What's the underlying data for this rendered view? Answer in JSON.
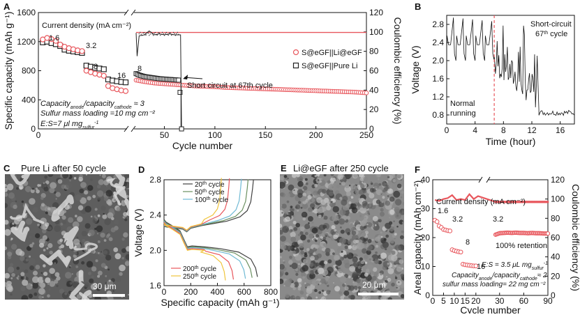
{
  "panel_labels": {
    "a": "A",
    "b": "B",
    "c": "C",
    "d": "D",
    "e": "E",
    "f": "F"
  },
  "panel_c": {
    "title": "Pure Li after 50 cycle",
    "scale": "30 μm"
  },
  "panel_e": {
    "title": "Li@eGF after 250 cycle",
    "scale": "20 μm"
  },
  "colors": {
    "red": "#e8565c",
    "black": "#222222",
    "sem_bg": "#6f6f6f"
  },
  "chart_data": [
    {
      "id": "A",
      "type": "scatter",
      "xlabel": "Cycle number",
      "ylabel": "Specific capacity (mAh g⁻¹)",
      "y2label": "Coulombic efficiency (%)",
      "xlim": [
        0,
        250
      ],
      "ylim": [
        0,
        1600
      ],
      "y2lim": [
        0,
        120
      ],
      "xticks": [
        0,
        50,
        100,
        150,
        200,
        250
      ],
      "yticks": [
        0,
        400,
        800,
        1200,
        1600
      ],
      "y2ticks": [
        0,
        20,
        40,
        60,
        80,
        100,
        120
      ],
      "axis_break": "between cycle 20 and 22",
      "legend": [
        "S@eGF||Li@eGF",
        "S@eGF||Pure Li"
      ],
      "annotations": {
        "current_density": "Current density (mA cm⁻²)",
        "rates": [
          "1.6",
          "3.2",
          "8",
          "16",
          "8"
        ],
        "short_circuit": "Short circuit at 67th cycle",
        "ratio_pre": "Capacity",
        "ratio_sub1": "anode",
        "ratio_mid": "/capacity",
        "ratio_sub2": "cathode",
        "ratio_post": "≈ 3",
        "loading": "Sulfur mass loading =10 mg cm⁻²",
        "es_pre": "E:S=7 μl mg",
        "es_sub": "sulfur",
        "es_sup": "-1"
      },
      "series": [
        {
          "name": "S@eGF||Li@eGF (capacity)",
          "x": [
            1,
            2,
            3,
            4,
            5,
            6,
            7,
            8,
            9,
            10,
            11,
            12,
            13,
            14,
            15,
            16,
            17,
            18,
            19,
            20
          ],
          "values": [
            1230,
            1250,
            1235,
            1210,
            1160,
            1130,
            1110,
            1095,
            1080,
            1070,
            800,
            780,
            760,
            745,
            730,
            590,
            560,
            545,
            530,
            520
          ]
        },
        {
          "name": "S@eGF||Pure Li (capacity)",
          "x": [
            1,
            2,
            3,
            4,
            5,
            6,
            7,
            8,
            9,
            10,
            11,
            12,
            13,
            14,
            15,
            16,
            17,
            18,
            19,
            20
          ],
          "values": [
            1190,
            1200,
            1180,
            1165,
            1140,
            1090,
            1075,
            1065,
            1055,
            1045,
            870,
            855,
            840,
            830,
            820,
            680,
            665,
            655,
            645,
            640
          ]
        },
        {
          "name": "S@eGF||Li@eGF (long)",
          "x": [
            22,
            30,
            40,
            50,
            60,
            70,
            80,
            90,
            100,
            110,
            120,
            130,
            140,
            150,
            160,
            170,
            180,
            190,
            200,
            210,
            220,
            230,
            240,
            250
          ],
          "values": [
            670,
            650,
            630,
            620,
            610,
            600,
            590,
            585,
            580,
            570,
            565,
            560,
            555,
            550,
            545,
            540,
            535,
            530,
            525,
            520,
            515,
            510,
            505,
            495
          ]
        },
        {
          "name": "S@eGF||Pure Li (long)",
          "x": [
            22,
            25,
            30,
            35,
            40,
            45,
            50,
            55,
            60,
            65,
            67
          ],
          "values": [
            760,
            740,
            720,
            710,
            700,
            690,
            685,
            680,
            675,
            670,
            0
          ]
        },
        {
          "name": "CE Li@eGF (%)",
          "x": [
            22,
            250
          ],
          "values": [
            99.5,
            99.5
          ]
        },
        {
          "name": "CE Pure Li (%)",
          "x": [
            22,
            23,
            25,
            30,
            35,
            40,
            45,
            50,
            55,
            60,
            65,
            66,
            67
          ],
          "values": [
            99,
            75,
            96,
            97,
            101,
            97,
            98,
            97,
            98,
            97,
            97,
            97,
            0
          ]
        }
      ]
    },
    {
      "id": "B",
      "type": "line",
      "xlabel": "Time (hour)",
      "ylabel": "Voltage (V)",
      "xlim": [
        0,
        18
      ],
      "ylim": [
        0.6,
        3.0
      ],
      "xticks": [
        0,
        4,
        8,
        12,
        16
      ],
      "yticks": [
        0.8,
        1.2,
        1.6,
        2.0,
        2.4,
        2.8
      ],
      "annotations": {
        "short_circuit": "Short-circuit",
        "cycle_pre": "67",
        "cycle_sup": "th",
        "cycle_post": " cycle",
        "normal_1": "Normal",
        "normal_2": "running"
      },
      "dashed_line_x": 6.7
    },
    {
      "id": "D",
      "type": "line",
      "xlabel": "Specific capacity (mAh g⁻¹)",
      "ylabel": "Voltage (V)",
      "xlim": [
        0,
        800
      ],
      "ylim": [
        1.6,
        2.8
      ],
      "xticks": [
        0,
        200,
        400,
        600,
        800
      ],
      "yticks": [
        1.6,
        2.0,
        2.4,
        2.8
      ],
      "series": [
        {
          "name": "20th cycle",
          "n": "20",
          "sup": "th",
          "post": " cycle",
          "color": "#404040",
          "capacity": 700
        },
        {
          "name": "50th cycle",
          "n": "50",
          "sup": "th",
          "post": " cycle",
          "color": "#6a8f5f",
          "capacity": 660
        },
        {
          "name": "100th cycle",
          "n": "100",
          "sup": "th",
          "post": " cycle",
          "color": "#6fb9d4",
          "capacity": 610
        },
        {
          "name": "200th cycle",
          "n": "200",
          "sup": "th",
          "post": " cycle",
          "color": "#e8565c",
          "capacity": 520
        },
        {
          "name": "250th cycle",
          "n": "250",
          "sup": "th",
          "post": " cycle",
          "color": "#f0c53c",
          "capacity": 460
        }
      ]
    },
    {
      "id": "F",
      "type": "scatter",
      "xlabel": "Cycle number",
      "ylabel": "Areal capacity (mAh cm⁻²)",
      "y2label": "Coulombic efficiency (%)",
      "xlim": [
        0,
        90
      ],
      "ylim": [
        0,
        40
      ],
      "y2lim": [
        0,
        120
      ],
      "xticks": [
        0,
        5,
        10,
        15,
        20,
        30,
        60,
        90
      ],
      "yticks": [
        0,
        10,
        20,
        30,
        40
      ],
      "y2ticks": [
        0,
        20,
        40,
        60,
        80,
        100,
        120
      ],
      "axis_break": "between cycle 22 and 25",
      "annotations": {
        "current_density": "Current density (mA cm⁻²)",
        "rates": [
          "1.6",
          "3.2",
          "8",
          "16",
          "3.2"
        ],
        "retention": "100% retention",
        "es_pre": "E:S = 3.5 μL mg",
        "es_sub": "sulfur",
        "es_sup": "-1",
        "ratio_pre": "Capacity",
        "ratio_sub1": "anode",
        "ratio_mid": "/capacity",
        "ratio_sub2": "cathode",
        "ratio_post": "≈ 2",
        "loading": "sulfur mass loading= 22 mg cm⁻²"
      },
      "series": [
        {
          "name": "Areal capacity",
          "x": [
            1,
            2,
            3,
            4,
            5,
            6,
            7,
            8,
            9,
            10,
            11,
            12,
            13,
            14,
            15,
            16,
            17,
            18,
            19,
            20
          ],
          "values": [
            26,
            25.5,
            24,
            23.5,
            22.8,
            22.6,
            22.4,
            22.3,
            15.8,
            15.5,
            15.3,
            15.1,
            15,
            10.8,
            10.6,
            10.5,
            10.4,
            10.3,
            10.2,
            10.2
          ]
        },
        {
          "name": "Areal capacity (long)",
          "x": [
            25,
            30,
            35,
            40,
            45,
            50,
            55,
            60,
            65,
            70,
            75,
            80,
            85,
            90
          ],
          "values": [
            21,
            21.5,
            21.6,
            21.7,
            21.6,
            21.7,
            21.6,
            21.6,
            21.5,
            21.6,
            21.5,
            21.5,
            21.4,
            21.4
          ]
        },
        {
          "name": "CE (%)",
          "x": [
            1,
            3,
            5,
            7,
            9,
            11,
            13,
            15,
            17,
            19,
            21,
            25,
            90
          ],
          "values": [
            99,
            98,
            100,
            101,
            104,
            99,
            100,
            99,
            105,
            100,
            103,
            97,
            97
          ]
        }
      ]
    }
  ]
}
